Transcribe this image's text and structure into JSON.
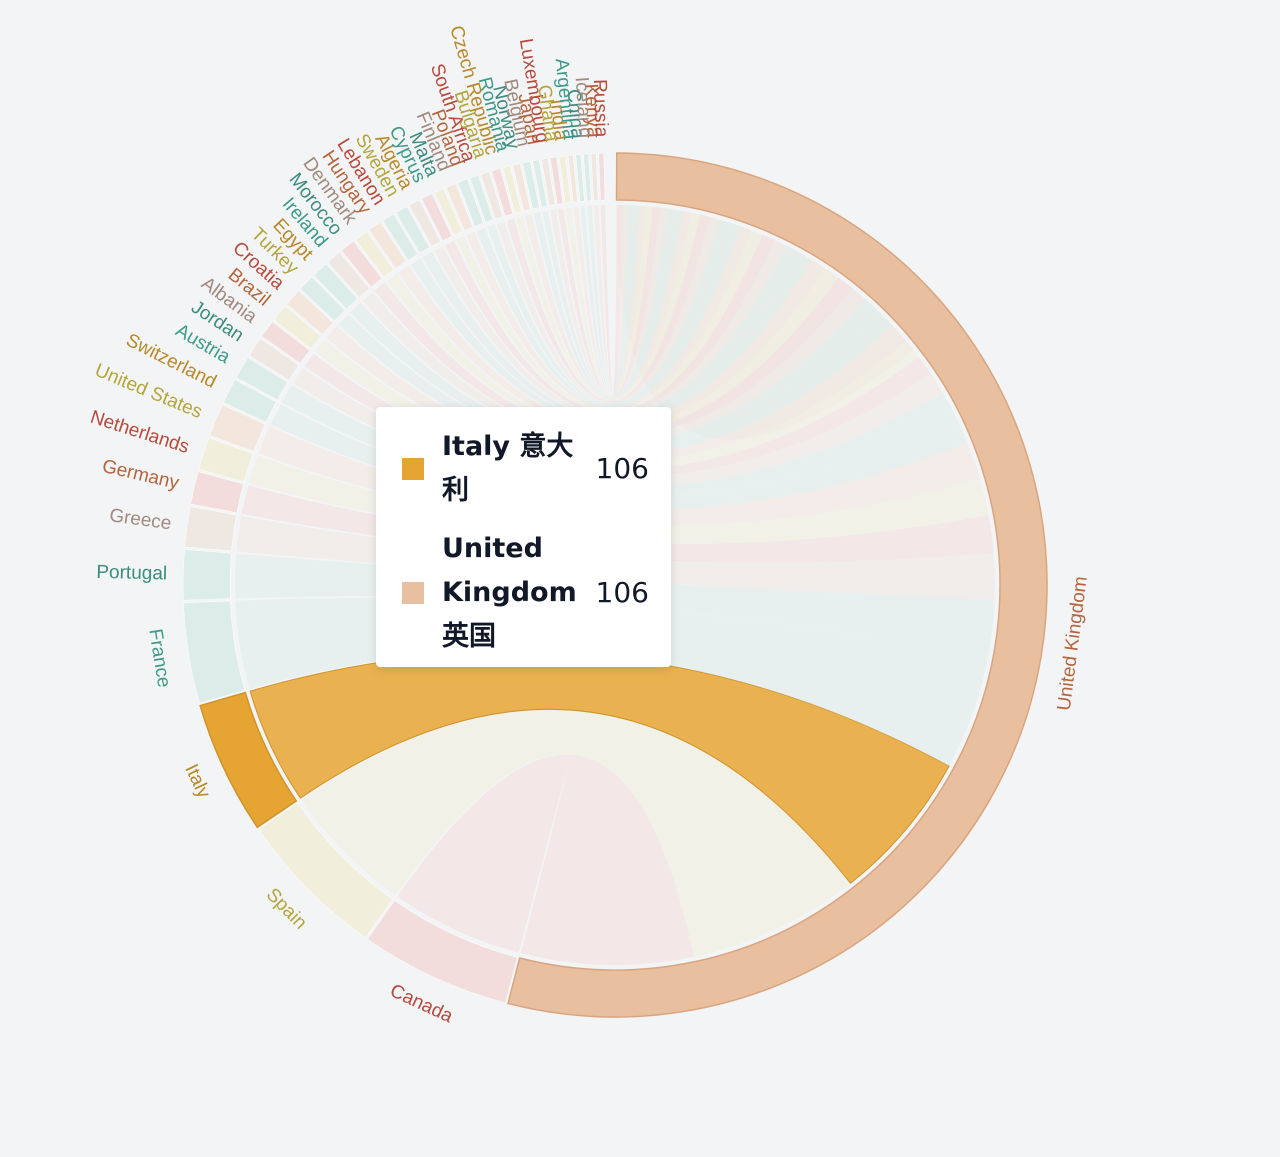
{
  "chart_data": {
    "type": "chord",
    "title": "",
    "center": "United Kingdom",
    "nodes": [
      {
        "name": "United Kingdom",
        "value": 1150,
        "color": "#e8bf9f"
      },
      {
        "name": "Canada",
        "value": 120,
        "color": "#f2dcdc"
      },
      {
        "name": "Spain",
        "value": 120,
        "color": "#f1efdc"
      },
      {
        "name": "Italy",
        "value": 106,
        "color": "#e6a532"
      },
      {
        "name": "France",
        "value": 80,
        "color": "#dcece9"
      },
      {
        "name": "Portugal",
        "value": 40,
        "color": "#dcece9"
      },
      {
        "name": "Greece",
        "value": 32,
        "color": "#efe7e2"
      },
      {
        "name": "Germany",
        "value": 26,
        "color": "#f2dcdc"
      },
      {
        "name": "Netherlands",
        "value": 26,
        "color": "#f1efdc"
      },
      {
        "name": "United States",
        "value": 26,
        "color": "#f3e6dc"
      },
      {
        "name": "Switzerland",
        "value": 20,
        "color": "#dcece9"
      },
      {
        "name": "Austria",
        "value": 18,
        "color": "#dcece9"
      },
      {
        "name": "Jordan",
        "value": 16,
        "color": "#efe7e2"
      },
      {
        "name": "Albania",
        "value": 14,
        "color": "#f2dcdc"
      },
      {
        "name": "Brazil",
        "value": 14,
        "color": "#f1efdc"
      },
      {
        "name": "Croatia",
        "value": 14,
        "color": "#f3e6dc"
      },
      {
        "name": "Turkey",
        "value": 13,
        "color": "#dcece9"
      },
      {
        "name": "Egypt",
        "value": 13,
        "color": "#dcece9"
      },
      {
        "name": "Ireland",
        "value": 12,
        "color": "#efe7e2"
      },
      {
        "name": "Morocco",
        "value": 12,
        "color": "#f2dcdc"
      },
      {
        "name": "Denmark",
        "value": 11,
        "color": "#f1efdc"
      },
      {
        "name": "Hungary",
        "value": 11,
        "color": "#f3e6dc"
      },
      {
        "name": "Lebanon",
        "value": 10,
        "color": "#dcece9"
      },
      {
        "name": "Sweden",
        "value": 10,
        "color": "#dcece9"
      },
      {
        "name": "Algeria",
        "value": 9,
        "color": "#efe7e2"
      },
      {
        "name": "Cyprus",
        "value": 9,
        "color": "#f2dcdc"
      },
      {
        "name": "Malta",
        "value": 8,
        "color": "#f1efdc"
      },
      {
        "name": "Finland",
        "value": 8,
        "color": "#f3e6dc"
      },
      {
        "name": "Poland",
        "value": 8,
        "color": "#dcece9"
      },
      {
        "name": "South Africa",
        "value": 7,
        "color": "#dcece9"
      },
      {
        "name": "Bulgaria",
        "value": 7,
        "color": "#efe7e2"
      },
      {
        "name": "Czech Republic",
        "value": 7,
        "color": "#f2dcdc"
      },
      {
        "name": "Romania",
        "value": 6,
        "color": "#f1efdc"
      },
      {
        "name": "Norway",
        "value": 6,
        "color": "#f3e6dc"
      },
      {
        "name": "Belgium",
        "value": 6,
        "color": "#dcece9"
      },
      {
        "name": "Japan",
        "value": 5,
        "color": "#dcece9"
      },
      {
        "name": "Luxembourg",
        "value": 5,
        "color": "#efe7e2"
      },
      {
        "name": "Ghana",
        "value": 5,
        "color": "#f2dcdc"
      },
      {
        "name": "India",
        "value": 5,
        "color": "#f1efdc"
      },
      {
        "name": "Argentina",
        "value": 4,
        "color": "#f3e6dc"
      },
      {
        "name": "China",
        "value": 4,
        "color": "#dcece9"
      },
      {
        "name": "Iceland",
        "value": 4,
        "color": "#dcece9"
      },
      {
        "name": "Kenya",
        "value": 4,
        "color": "#efe7e2"
      },
      {
        "name": "Russia",
        "value": 4,
        "color": "#f2dcdc"
      }
    ],
    "label_colors": [
      "#b5653d",
      "#b84a3c",
      "#b3a63c",
      "#b8892a",
      "#3d9b8a",
      "#3d8b7c",
      "#a08a7e"
    ],
    "highlight": {
      "source": "Italy",
      "target": "United Kingdom",
      "value": 106
    }
  },
  "tooltip": {
    "rows": [
      {
        "label": "Italy 意大利",
        "value": "106",
        "color": "#e6a532"
      },
      {
        "label": "United Kingdom 英国",
        "value": "106",
        "color": "#e8bf9f"
      }
    ]
  }
}
